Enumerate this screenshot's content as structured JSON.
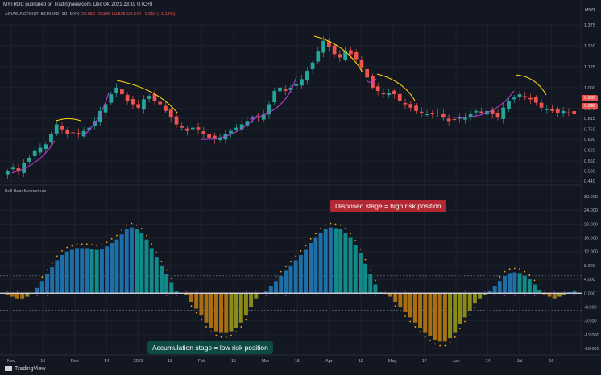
{
  "header": {
    "published": "MYTRDC published on TradingView.com, Dec 04, 2021 23:19 UTC+8",
    "symbol_line": "AIRASIA GROUP BERHAD, 1D, MYX",
    "ohlc": "O0.850  H0.855  L0.835  C0.840  −0.010 (−1.18%)",
    "currency": "MYR"
  },
  "indicator_legend": "Bull  Bear Momentum",
  "footer": {
    "brand": "TradingView"
  },
  "price_labels": {
    "last": "0.885",
    "prev": "0.840"
  },
  "annotations": {
    "disposed": "Disposed stage = high risk position",
    "accumulation": "Accumulation stage = low risk position"
  },
  "colors": {
    "background": "#131722",
    "up": "#26a69a",
    "down": "#ef5350",
    "bull_hist": "#1e6fa8",
    "bull_hist_peak": "#138a8a",
    "bear_hist": "#a86f12",
    "bear_hist_peak": "#8a8a18",
    "signal_dots": "#f7a21b",
    "squeeze_dots": "#c940e0",
    "arrows_yellow": "#ffd70a",
    "arrows_purple": "#b73bd1"
  },
  "chart_data": [
    {
      "type": "candlestick",
      "title": "",
      "ylim": [
        0.44,
        1.38
      ],
      "y_ticks": [
        "1.375",
        "1.250",
        "1.125",
        "1.000",
        "0.945",
        "0.875",
        "0.815",
        "0.750",
        "0.690",
        "0.625",
        "0.560",
        "0.500",
        "0.440"
      ],
      "x_ticks": [
        "Nov",
        "16",
        "Dec",
        "14",
        "2021",
        "18",
        "Feb",
        "15",
        "Mar",
        "15",
        "Apr",
        "19",
        "May",
        "17",
        "Jun",
        "14",
        "Jul",
        "16"
      ],
      "close_path": [
        0.5,
        0.52,
        0.5,
        0.55,
        0.58,
        0.62,
        0.64,
        0.66,
        0.72,
        0.78,
        0.75,
        0.72,
        0.73,
        0.72,
        0.74,
        0.76,
        0.8,
        0.86,
        0.9,
        0.96,
        1.0,
        0.96,
        0.92,
        0.9,
        0.88,
        0.93,
        0.95,
        0.92,
        0.9,
        0.86,
        0.82,
        0.78,
        0.76,
        0.74,
        0.76,
        0.75,
        0.72,
        0.7,
        0.69,
        0.7,
        0.72,
        0.74,
        0.76,
        0.78,
        0.8,
        0.82,
        0.82,
        0.84,
        0.9,
        0.98,
        1.0,
        0.98,
        1.0,
        1.02,
        1.05,
        1.1,
        1.15,
        1.22,
        1.28,
        1.24,
        1.2,
        1.18,
        1.22,
        1.2,
        1.17,
        1.12,
        1.06,
        1.0,
        0.98,
        0.96,
        0.97,
        0.96,
        0.92,
        0.9,
        0.88,
        0.86,
        0.85,
        0.84,
        0.84,
        0.85,
        0.82,
        0.8,
        0.81,
        0.82,
        0.82,
        0.84,
        0.86,
        0.85,
        0.86,
        0.84,
        0.82,
        0.88,
        0.92,
        0.94,
        0.96,
        0.94,
        0.93,
        0.91,
        0.88,
        0.87,
        0.86,
        0.85,
        0.86,
        0.85,
        0.84
      ]
    },
    {
      "type": "bar",
      "title": "",
      "ylim": [
        -16,
        28
      ],
      "y_ticks": [
        "28.000",
        "24.000",
        "20.000",
        "16.000",
        "12.000",
        "8.000",
        "4.000",
        "0.000",
        "-4.000",
        "-8.000",
        "-12.000",
        "-16.000"
      ],
      "momentum": [
        -0.5,
        -1,
        -1.5,
        -1.5,
        -1,
        0,
        1.5,
        3.5,
        5.5,
        7.5,
        9.5,
        11,
        12,
        12.5,
        13,
        13,
        13,
        12.8,
        12.5,
        12.8,
        13.5,
        14.5,
        15.5,
        17,
        18.5,
        19,
        18.5,
        17.5,
        15.5,
        13,
        10.5,
        8,
        5.5,
        3,
        0.5,
        0,
        -0.5,
        -2.5,
        -4.5,
        -6.5,
        -8.5,
        -10,
        -11,
        -11.5,
        -11.5,
        -11,
        -10,
        -8.5,
        -6.5,
        -4,
        -1.5,
        0,
        0.5,
        2,
        3.5,
        5,
        6.5,
        8,
        9.5,
        11,
        12.5,
        14.5,
        16,
        17.5,
        18.5,
        19,
        18.8,
        18.5,
        17.5,
        16,
        14,
        11.5,
        8.5,
        5.5,
        2.5,
        0.3,
        -0.2,
        -1,
        -2.5,
        -4,
        -5.5,
        -7,
        -8.5,
        -10,
        -11.5,
        -12.5,
        -13.5,
        -14,
        -14,
        -13,
        -11.5,
        -9,
        -7,
        -5,
        -3,
        -1.5,
        -0.5,
        0.8,
        2,
        3.5,
        5,
        5.8,
        6,
        5.8,
        5,
        4,
        2.5,
        1,
        -0.3,
        -1,
        -1.5,
        -1,
        -0.5,
        0.3,
        0.8
      ],
      "guide_levels": [
        5,
        -5
      ]
    }
  ]
}
